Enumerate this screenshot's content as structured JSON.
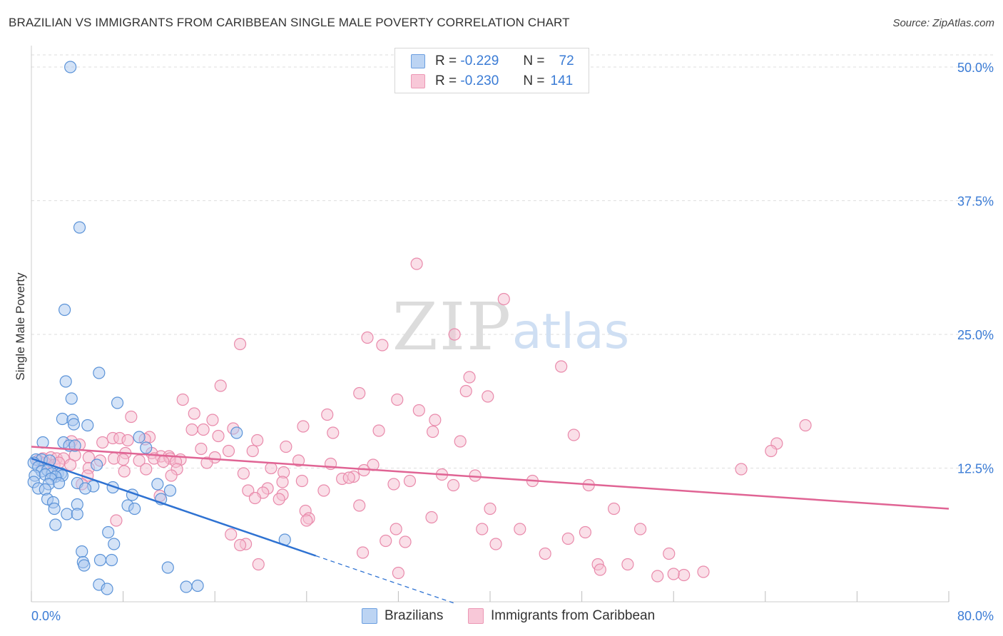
{
  "title": "BRAZILIAN VS IMMIGRANTS FROM CARIBBEAN SINGLE MALE POVERTY CORRELATION CHART",
  "source": "Source: ZipAtlas.com",
  "watermark": {
    "zip": "ZIP",
    "atlas": "atlas"
  },
  "legend": {
    "rows": [
      {
        "r_label": "R =",
        "r_value": "-0.229",
        "n_label": "N =",
        "n_value": "72"
      },
      {
        "r_label": "R =",
        "r_value": "-0.230",
        "n_label": "N =",
        "n_value": "141"
      }
    ]
  },
  "bottom_legend": {
    "blue_label": "Brazilians",
    "pink_label": "Immigrants from Caribbean"
  },
  "colors": {
    "blue_fill": "#aac8f0",
    "blue_stroke": "#5b93d8",
    "blue_line": "#2e72d2",
    "pink_fill": "#f6bfd1",
    "pink_stroke": "#e98aab",
    "pink_line": "#e06494",
    "tick_label": "#3a7bd5"
  },
  "chart_data": {
    "type": "scatter",
    "title": "BRAZILIAN VS IMMIGRANTS FROM CARIBBEAN SINGLE MALE POVERTY CORRELATION CHART",
    "xlabel": "",
    "ylabel": "Single Male Poverty",
    "xlim": [
      0,
      80
    ],
    "ylim": [
      0,
      52
    ],
    "x_tick_labels": [
      "0.0%",
      "80.0%"
    ],
    "y_ticks": [
      12.5,
      25.0,
      37.5,
      50.0
    ],
    "y_tick_labels": [
      "12.5%",
      "25.0%",
      "37.5%",
      "50.0%"
    ],
    "series": [
      {
        "name": "Brazilians",
        "color": "blue",
        "trend": {
          "x1": 0,
          "y1": 13.4,
          "x2": 24.8,
          "y2": 4.3,
          "dash_to_x": 37
        },
        "points": [
          [
            3.4,
            50.0
          ],
          [
            4.2,
            35.0
          ],
          [
            2.9,
            27.3
          ],
          [
            5.9,
            21.4
          ],
          [
            3.0,
            20.6
          ],
          [
            3.5,
            19.0
          ],
          [
            7.5,
            18.6
          ],
          [
            2.7,
            17.1
          ],
          [
            3.6,
            17.0
          ],
          [
            3.7,
            16.6
          ],
          [
            4.9,
            16.5
          ],
          [
            9.4,
            15.4
          ],
          [
            17.9,
            15.8
          ],
          [
            1.0,
            14.9
          ],
          [
            2.8,
            14.9
          ],
          [
            3.3,
            14.6
          ],
          [
            3.8,
            14.6
          ],
          [
            10.0,
            14.4
          ],
          [
            0.4,
            13.3
          ],
          [
            0.9,
            13.3
          ],
          [
            1.6,
            13.2
          ],
          [
            0.2,
            13.0
          ],
          [
            5.7,
            12.8
          ],
          [
            0.6,
            12.6
          ],
          [
            0.9,
            12.2
          ],
          [
            1.4,
            12.3
          ],
          [
            2.3,
            12.0
          ],
          [
            1.8,
            12.0
          ],
          [
            2.6,
            12.0
          ],
          [
            2.7,
            11.8
          ],
          [
            0.3,
            11.8
          ],
          [
            1.2,
            11.9
          ],
          [
            2.1,
            11.7
          ],
          [
            1.7,
            11.5
          ],
          [
            0.2,
            11.2
          ],
          [
            1.5,
            11.0
          ],
          [
            2.4,
            11.1
          ],
          [
            4.0,
            11.1
          ],
          [
            5.4,
            10.8
          ],
          [
            7.1,
            10.7
          ],
          [
            8.8,
            10.0
          ],
          [
            11.0,
            11.0
          ],
          [
            0.6,
            10.6
          ],
          [
            1.2,
            10.5
          ],
          [
            4.7,
            10.6
          ],
          [
            12.1,
            10.4
          ],
          [
            11.3,
            9.6
          ],
          [
            1.4,
            9.6
          ],
          [
            1.9,
            9.3
          ],
          [
            2.0,
            8.7
          ],
          [
            4.0,
            9.1
          ],
          [
            8.4,
            9.0
          ],
          [
            9.0,
            8.7
          ],
          [
            3.1,
            8.2
          ],
          [
            4.0,
            8.2
          ],
          [
            2.1,
            7.2
          ],
          [
            6.7,
            6.5
          ],
          [
            7.2,
            5.4
          ],
          [
            22.1,
            5.8
          ],
          [
            4.4,
            4.7
          ],
          [
            4.5,
            3.7
          ],
          [
            7.0,
            3.9
          ],
          [
            6.0,
            3.9
          ],
          [
            4.6,
            3.4
          ],
          [
            11.9,
            3.2
          ],
          [
            5.9,
            1.6
          ],
          [
            6.6,
            1.2
          ],
          [
            13.5,
            1.4
          ],
          [
            14.5,
            1.5
          ]
        ]
      },
      {
        "name": "Immigrants from Caribbean",
        "color": "pink",
        "trend": {
          "x1": 0,
          "y1": 14.5,
          "x2": 80,
          "y2": 8.7
        },
        "points": [
          [
            33.6,
            31.6
          ],
          [
            41.2,
            28.3
          ],
          [
            18.2,
            24.1
          ],
          [
            29.3,
            24.7
          ],
          [
            36.9,
            25.0
          ],
          [
            30.6,
            24.0
          ],
          [
            46.2,
            22.0
          ],
          [
            38.2,
            21.0
          ],
          [
            16.5,
            20.2
          ],
          [
            28.6,
            19.5
          ],
          [
            37.9,
            19.7
          ],
          [
            39.8,
            19.2
          ],
          [
            13.2,
            18.9
          ],
          [
            31.9,
            18.9
          ],
          [
            33.8,
            17.9
          ],
          [
            25.8,
            17.5
          ],
          [
            8.7,
            17.3
          ],
          [
            14.2,
            17.6
          ],
          [
            15.8,
            17.0
          ],
          [
            35.2,
            17.0
          ],
          [
            23.7,
            16.4
          ],
          [
            67.5,
            16.5
          ],
          [
            14.0,
            16.1
          ],
          [
            15.0,
            16.1
          ],
          [
            17.6,
            16.2
          ],
          [
            30.3,
            16.0
          ],
          [
            26.3,
            15.8
          ],
          [
            35.0,
            15.9
          ],
          [
            47.3,
            15.6
          ],
          [
            7.1,
            15.3
          ],
          [
            7.7,
            15.3
          ],
          [
            10.3,
            15.4
          ],
          [
            16.3,
            15.5
          ],
          [
            9.9,
            15.2
          ],
          [
            19.7,
            15.1
          ],
          [
            37.4,
            15.0
          ],
          [
            6.2,
            14.9
          ],
          [
            8.4,
            15.1
          ],
          [
            3.5,
            15.0
          ],
          [
            4.2,
            14.7
          ],
          [
            65.0,
            14.8
          ],
          [
            22.2,
            14.5
          ],
          [
            14.8,
            14.3
          ],
          [
            17.2,
            14.1
          ],
          [
            19.3,
            14.1
          ],
          [
            64.5,
            14.1
          ],
          [
            8.2,
            13.9
          ],
          [
            10.5,
            13.9
          ],
          [
            11.3,
            13.6
          ],
          [
            12.0,
            13.6
          ],
          [
            16.0,
            13.5
          ],
          [
            3.8,
            13.7
          ],
          [
            5.0,
            13.5
          ],
          [
            7.2,
            13.4
          ],
          [
            8.0,
            13.3
          ],
          [
            10.7,
            13.4
          ],
          [
            12.1,
            13.4
          ],
          [
            13.0,
            13.3
          ],
          [
            1.0,
            13.4
          ],
          [
            1.7,
            13.5
          ],
          [
            2.2,
            13.4
          ],
          [
            2.8,
            13.4
          ],
          [
            6.0,
            13.2
          ],
          [
            9.4,
            13.2
          ],
          [
            11.5,
            13.1
          ],
          [
            12.6,
            13.1
          ],
          [
            15.3,
            13.0
          ],
          [
            23.3,
            13.2
          ],
          [
            0.6,
            13.2
          ],
          [
            1.2,
            13.0
          ],
          [
            2.0,
            12.8
          ],
          [
            2.4,
            13.0
          ],
          [
            5.0,
            12.5
          ],
          [
            3.4,
            12.8
          ],
          [
            26.1,
            12.9
          ],
          [
            29.8,
            12.8
          ],
          [
            10.0,
            12.4
          ],
          [
            12.7,
            12.4
          ],
          [
            20.9,
            12.5
          ],
          [
            29.0,
            12.3
          ],
          [
            61.9,
            12.4
          ],
          [
            18.5,
            12.0
          ],
          [
            8.1,
            12.2
          ],
          [
            22.0,
            12.1
          ],
          [
            28.1,
            11.7
          ],
          [
            35.8,
            11.9
          ],
          [
            38.7,
            11.8
          ],
          [
            4.9,
            11.8
          ],
          [
            12.2,
            11.8
          ],
          [
            27.1,
            11.5
          ],
          [
            27.7,
            11.6
          ],
          [
            21.9,
            11.2
          ],
          [
            23.6,
            11.3
          ],
          [
            33.0,
            11.3
          ],
          [
            43.7,
            11.3
          ],
          [
            4.4,
            11.0
          ],
          [
            31.6,
            11.0
          ],
          [
            36.8,
            10.9
          ],
          [
            48.6,
            10.9
          ],
          [
            20.6,
            10.6
          ],
          [
            18.9,
            10.4
          ],
          [
            25.5,
            10.4
          ],
          [
            20.2,
            10.2
          ],
          [
            21.9,
            10.0
          ],
          [
            11.2,
            9.9
          ],
          [
            19.5,
            9.7
          ],
          [
            21.6,
            9.6
          ],
          [
            28.6,
            9.0
          ],
          [
            40.0,
            8.7
          ],
          [
            50.8,
            8.7
          ],
          [
            23.9,
            8.5
          ],
          [
            7.4,
            7.6
          ],
          [
            24.2,
            7.8
          ],
          [
            34.9,
            7.9
          ],
          [
            24.0,
            7.6
          ],
          [
            31.8,
            6.8
          ],
          [
            39.3,
            6.8
          ],
          [
            42.6,
            6.8
          ],
          [
            48.3,
            6.5
          ],
          [
            53.1,
            6.8
          ],
          [
            17.4,
            6.3
          ],
          [
            46.8,
            5.9
          ],
          [
            30.9,
            5.7
          ],
          [
            32.6,
            5.6
          ],
          [
            40.5,
            5.4
          ],
          [
            18.7,
            5.4
          ],
          [
            18.2,
            5.3
          ],
          [
            28.9,
            4.6
          ],
          [
            44.8,
            4.5
          ],
          [
            55.6,
            4.5
          ],
          [
            19.8,
            3.5
          ],
          [
            49.4,
            3.5
          ],
          [
            52.0,
            3.5
          ],
          [
            49.6,
            3.0
          ],
          [
            32.0,
            2.7
          ],
          [
            54.6,
            2.4
          ],
          [
            56.9,
            2.5
          ],
          [
            56.0,
            2.6
          ],
          [
            58.6,
            2.8
          ]
        ]
      }
    ]
  }
}
